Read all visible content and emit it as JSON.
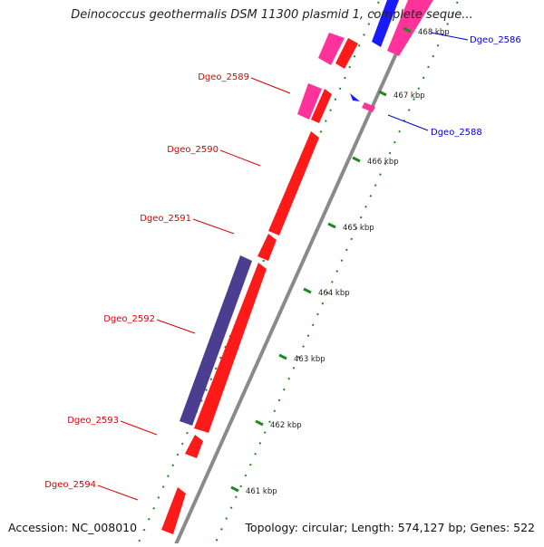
{
  "title": "Deinococcus geothermalis DSM 11300 plasmid 1, complete seque...",
  "footer": {
    "accession": "Accession: NC_008010",
    "summary": "Topology: circular; Length: 574,127 bp; Genes: 522"
  },
  "colors": {
    "backbone": "#8a8a8a",
    "gene_red": "#ff1a1a",
    "gene_pink": "#ff3399",
    "gene_purple": "#4b3d8f",
    "gene_blue": "#1a1aff",
    "tick_green": "#1e8a1e",
    "label_red": "#dd0000",
    "label_blue": "#0000cc"
  },
  "scale": {
    "unit": "kbp",
    "ticks": [
      {
        "label": "461 kbp"
      },
      {
        "label": "462 kbp"
      },
      {
        "label": "463 kbp"
      },
      {
        "label": "464 kbp"
      },
      {
        "label": "465 kbp"
      },
      {
        "label": "466 kbp"
      },
      {
        "label": "467 kbp"
      },
      {
        "label": "468 kbp"
      }
    ]
  },
  "genes": [
    {
      "name": "Dgeo_2586",
      "label_color": "blue"
    },
    {
      "name": "Dgeo_2588",
      "label_color": "blue"
    },
    {
      "name": "Dgeo_2589",
      "label_color": "red"
    },
    {
      "name": "Dgeo_2590",
      "label_color": "red"
    },
    {
      "name": "Dgeo_2591",
      "label_color": "red"
    },
    {
      "name": "Dgeo_2592",
      "label_color": "red"
    },
    {
      "name": "Dgeo_2593",
      "label_color": "red"
    },
    {
      "name": "Dgeo_2594",
      "label_color": "red"
    }
  ]
}
